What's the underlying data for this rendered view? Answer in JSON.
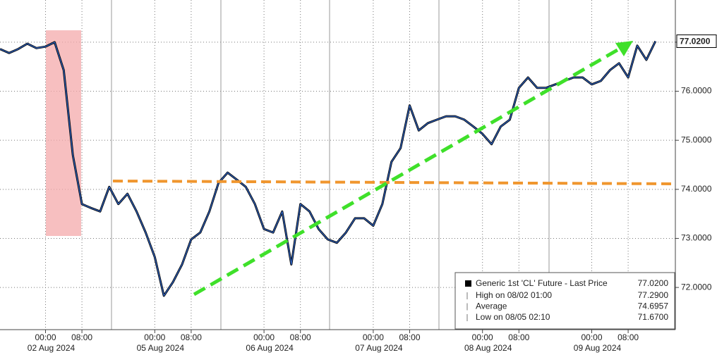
{
  "chart_data": {
    "type": "line",
    "x": [
      "2024-08-01 14:00",
      "2024-08-01 16:00",
      "2024-08-01 18:00",
      "2024-08-01 20:00",
      "2024-08-01 22:00",
      "2024-08-02 00:00",
      "2024-08-02 02:00",
      "2024-08-02 04:00",
      "2024-08-02 06:00",
      "2024-08-02 08:00",
      "2024-08-02 10:00",
      "2024-08-02 12:00",
      "2024-08-02 14:00",
      "2024-08-02 16:00",
      "2024-08-02 18:00",
      "2024-08-02 20:00",
      "2024-08-02 22:00",
      "2024-08-05 00:00",
      "2024-08-05 02:00",
      "2024-08-05 04:00",
      "2024-08-05 06:00",
      "2024-08-05 08:00",
      "2024-08-05 10:00",
      "2024-08-05 12:00",
      "2024-08-05 14:00",
      "2024-08-05 16:00",
      "2024-08-05 18:00",
      "2024-08-05 20:00",
      "2024-08-05 22:00",
      "2024-08-06 00:00",
      "2024-08-06 02:00",
      "2024-08-06 04:00",
      "2024-08-06 06:00",
      "2024-08-06 08:00",
      "2024-08-06 10:00",
      "2024-08-06 12:00",
      "2024-08-06 14:00",
      "2024-08-06 16:00",
      "2024-08-06 18:00",
      "2024-08-06 20:00",
      "2024-08-06 22:00",
      "2024-08-07 00:00",
      "2024-08-07 02:00",
      "2024-08-07 04:00",
      "2024-08-07 06:00",
      "2024-08-07 08:00",
      "2024-08-07 10:00",
      "2024-08-07 12:00",
      "2024-08-07 14:00",
      "2024-08-07 16:00",
      "2024-08-07 18:00",
      "2024-08-07 20:00",
      "2024-08-07 22:00",
      "2024-08-08 00:00",
      "2024-08-08 02:00",
      "2024-08-08 04:00",
      "2024-08-08 06:00",
      "2024-08-08 08:00",
      "2024-08-08 10:00",
      "2024-08-08 12:00",
      "2024-08-08 14:00",
      "2024-08-08 16:00",
      "2024-08-08 18:00",
      "2024-08-08 20:00",
      "2024-08-08 22:00",
      "2024-08-09 00:00",
      "2024-08-09 02:00",
      "2024-08-09 04:00",
      "2024-08-09 06:00",
      "2024-08-09 08:00",
      "2024-08-09 10:00",
      "2024-08-09 12:00",
      "2024-08-09 14:00"
    ],
    "series": [
      {
        "name": "Generic 1st 'CL' Future - Last Price",
        "color": "#2f63c0",
        "values": [
          76.86,
          76.78,
          76.86,
          76.97,
          76.88,
          76.91,
          77.0,
          76.43,
          74.7,
          73.7,
          73.62,
          73.55,
          74.05,
          73.7,
          73.91,
          73.55,
          73.12,
          72.62,
          71.83,
          72.11,
          72.47,
          72.98,
          73.12,
          73.55,
          74.13,
          74.34,
          74.2,
          74.05,
          73.7,
          73.19,
          73.12,
          73.55,
          72.47,
          73.7,
          73.55,
          73.19,
          72.98,
          72.91,
          73.12,
          73.41,
          73.41,
          73.26,
          73.7,
          74.56,
          74.84,
          75.71,
          75.2,
          75.35,
          75.42,
          75.49,
          75.49,
          75.42,
          75.28,
          75.13,
          74.92,
          75.28,
          75.42,
          76.07,
          76.28,
          76.07,
          76.07,
          76.14,
          76.21,
          76.28,
          76.28,
          76.14,
          76.21,
          76.43,
          76.57,
          76.28,
          76.93,
          76.64,
          77.02
        ]
      }
    ],
    "ylim": [
      71.14,
      77.86
    ],
    "yticks": [
      {
        "value": 72,
        "label": "72.0000"
      },
      {
        "value": 73,
        "label": "73.0000"
      },
      {
        "value": 74,
        "label": "74.0000"
      },
      {
        "value": 75,
        "label": "75.0000"
      },
      {
        "value": 76,
        "label": "76.0000"
      },
      {
        "value": 77,
        "label": "77.0000"
      }
    ],
    "xticks": [
      {
        "value": "2024-08-02 00:00",
        "label": "00:00"
      },
      {
        "value": "2024-08-02 08:00",
        "label": "08:00"
      },
      {
        "value": "2024-08-05 00:00",
        "label": "00:00"
      },
      {
        "value": "2024-08-05 08:00",
        "label": "08:00"
      },
      {
        "value": "2024-08-06 00:00",
        "label": "00:00"
      },
      {
        "value": "2024-08-06 08:00",
        "label": "08:00"
      },
      {
        "value": "2024-08-07 00:00",
        "label": "00:00"
      },
      {
        "value": "2024-08-07 08:00",
        "label": "08:00"
      },
      {
        "value": "2024-08-08 00:00",
        "label": "00:00"
      },
      {
        "value": "2024-08-08 08:00",
        "label": "08:00"
      },
      {
        "value": "2024-08-09 00:00",
        "label": "00:00"
      },
      {
        "value": "2024-08-09 08:00",
        "label": "08:00"
      }
    ],
    "xdates": [
      {
        "value": "2024-08-02 00:00",
        "label": "02 Aug 2024"
      },
      {
        "value": "2024-08-05 00:00",
        "label": "05 Aug 2024"
      },
      {
        "value": "2024-08-06 00:00",
        "label": "06 Aug 2024"
      },
      {
        "value": "2024-08-07 00:00",
        "label": "07 Aug 2024"
      },
      {
        "value": "2024-08-08 00:00",
        "label": "08 Aug 2024"
      },
      {
        "value": "2024-08-09 00:00",
        "label": "09 Aug 2024"
      }
    ],
    "last": {
      "value": 77.02,
      "label": "77.0200"
    },
    "stats": [
      {
        "name": "High on 08/02 01:00",
        "value": 77.29,
        "value_label": "77.2900"
      },
      {
        "name": "Average",
        "value": 74.6957,
        "value_label": "74.6957"
      },
      {
        "name": "Low on 08/05 02:10",
        "value": 71.67,
        "value_label": "71.6700"
      }
    ],
    "grid": true
  }
}
